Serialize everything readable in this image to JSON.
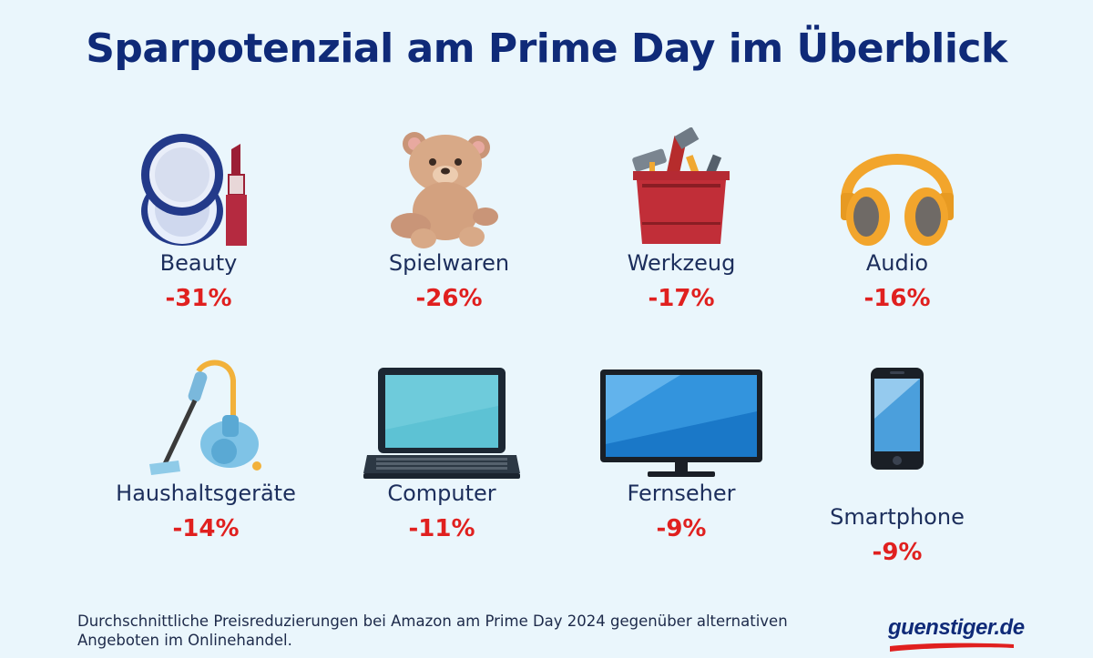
{
  "title": "Sparpotenzial am Prime Day im Überblick",
  "categories": [
    {
      "label": "Beauty",
      "discount": "-31%",
      "icon": "compact-lipstick-icon"
    },
    {
      "label": "Spielwaren",
      "discount": "-26%",
      "icon": "teddy-bear-icon"
    },
    {
      "label": "Werkzeug",
      "discount": "-17%",
      "icon": "toolbox-icon"
    },
    {
      "label": "Audio",
      "discount": "-16%",
      "icon": "headphones-icon"
    },
    {
      "label": "Haushaltsgeräte",
      "discount": "-14%",
      "icon": "vacuum-cleaner-icon"
    },
    {
      "label": "Computer",
      "discount": "-11%",
      "icon": "laptop-icon"
    },
    {
      "label": "Fernseher",
      "discount": "-9%",
      "icon": "television-icon"
    },
    {
      "label": "Smartphone",
      "discount": "-9%",
      "icon": "smartphone-icon"
    }
  ],
  "footnote": "Durchschnittliche Preisreduzierungen bei Amazon am Prime Day 2024 gegenüber alternativen Angeboten im Onlinehandel.",
  "logo": "guenstiger.de",
  "colors": {
    "title": "#0f2a78",
    "discount": "#e0201f",
    "background": "#eaf6fc"
  }
}
